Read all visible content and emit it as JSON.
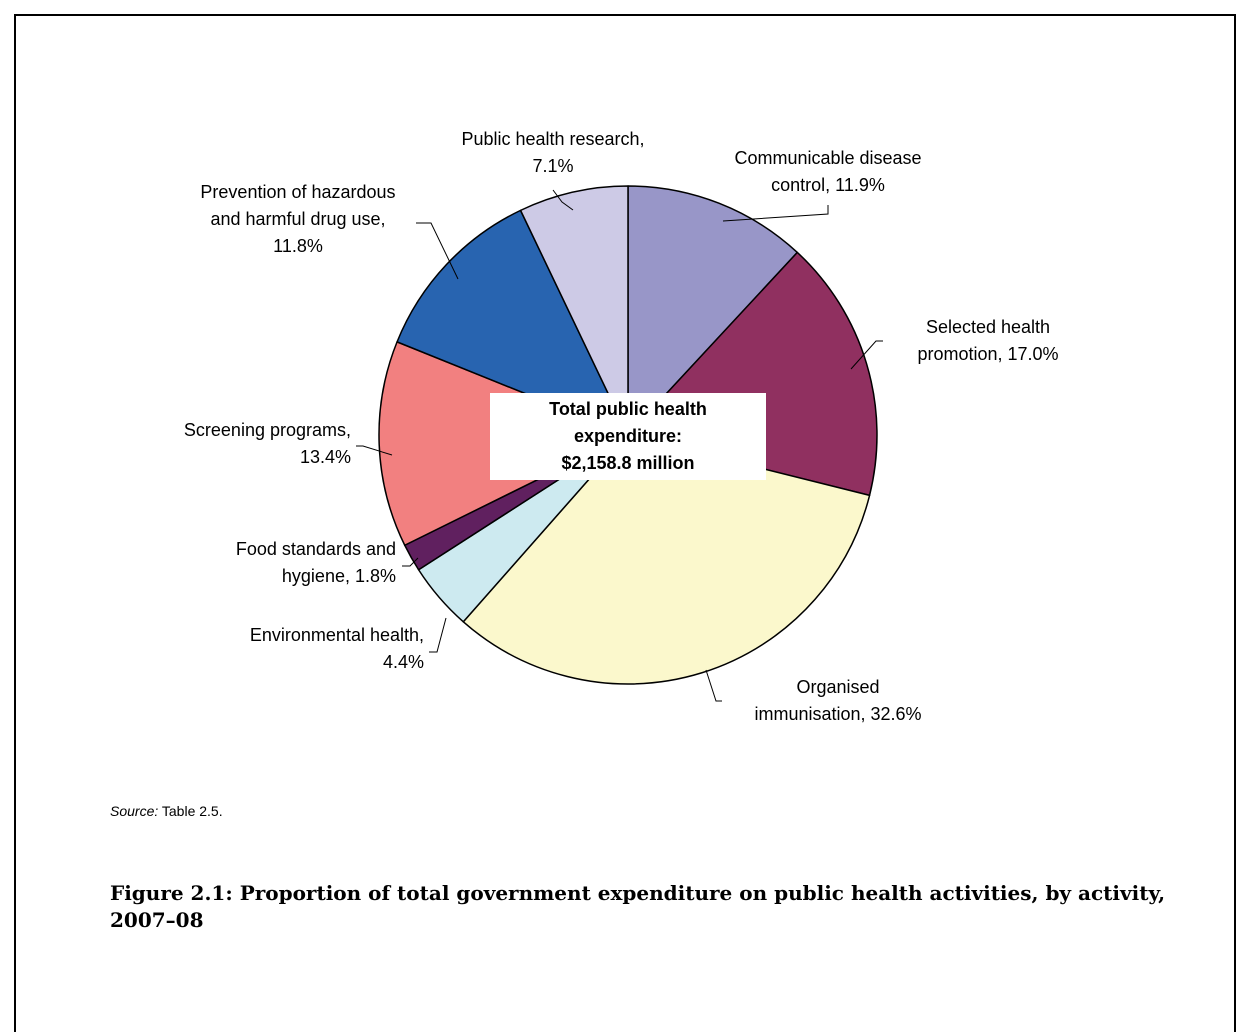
{
  "chart_data": {
    "type": "pie",
    "center_label": [
      "Total public health",
      "expenditure:",
      "$2,158.8 million"
    ],
    "slices": [
      {
        "label_lines": [
          "Communicable disease",
          "control, 11.9%"
        ],
        "value": 11.9,
        "color": "#9896c8"
      },
      {
        "label_lines": [
          "Selected health",
          "promotion, 17.0%"
        ],
        "value": 17.0,
        "color": "#903060"
      },
      {
        "label_lines": [
          "Organised",
          "immunisation, 32.6%"
        ],
        "value": 32.6,
        "color": "#fbf8cc"
      },
      {
        "label_lines": [
          "Environmental health,",
          "4.4%"
        ],
        "value": 4.4,
        "color": "#cdeaf0"
      },
      {
        "label_lines": [
          "Food standards and",
          "hygiene, 1.8%"
        ],
        "value": 1.8,
        "color": "#60205f"
      },
      {
        "label_lines": [
          "Screening programs,",
          "13.4%"
        ],
        "value": 13.4,
        "color": "#f28080"
      },
      {
        "label_lines": [
          "Prevention of hazardous",
          "and harmful drug use,",
          "11.8%"
        ],
        "value": 11.8,
        "color": "#2864b0"
      },
      {
        "label_lines": [
          "Public health research,",
          "7.1%"
        ],
        "value": 7.1,
        "color": "#cdcae6"
      }
    ]
  },
  "source": {
    "prefix": "Source:",
    "text": " Table 2.5."
  },
  "caption": "Figure 2.1: Proportion of total government expenditure on public health activities, by activity, 2007–08"
}
